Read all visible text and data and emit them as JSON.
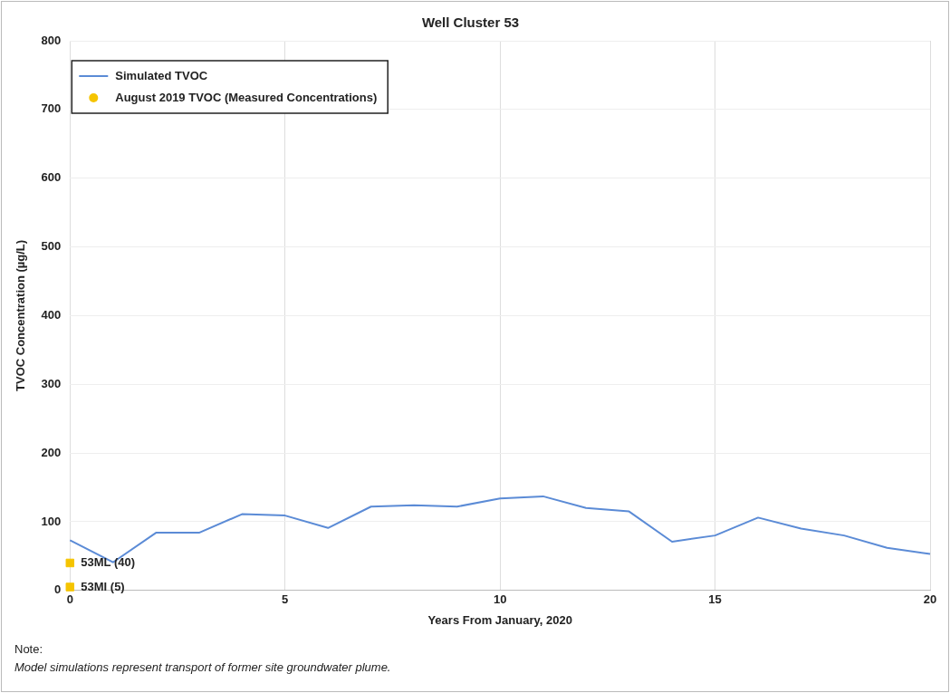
{
  "chart_data": {
    "type": "line",
    "title": "Well Cluster 53",
    "xlabel": "Years From January, 2020",
    "ylabel": "TVOC Concentration (µg/L)",
    "x": [
      0,
      1,
      2,
      3,
      4,
      5,
      6,
      7,
      8,
      9,
      10,
      11,
      12,
      13,
      14,
      15,
      16,
      17,
      18,
      19,
      20
    ],
    "series": [
      {
        "name": "Simulated TVOC",
        "marker": "none",
        "color": "#5b8bd6",
        "values": [
          73,
          41,
          84,
          84,
          111,
          109,
          91,
          122,
          124,
          122,
          134,
          137,
          120,
          115,
          71,
          80,
          106,
          90,
          80,
          62,
          53
        ]
      },
      {
        "name": "August 2019 TVOC (Measured Concentrations)",
        "type": "scatter",
        "marker": "square",
        "color": "#f5c400",
        "x": [
          0,
          0
        ],
        "values": [
          40,
          5
        ]
      }
    ],
    "xlim": [
      0,
      20
    ],
    "xticks": [
      0,
      5,
      10,
      15,
      20
    ],
    "ylim": [
      0,
      800
    ],
    "yticks": [
      0,
      100,
      200,
      300,
      400,
      500,
      600,
      700,
      800
    ],
    "grid": true,
    "legend": "top left",
    "annotations": [
      {
        "text": "53ML (40)",
        "x": 0,
        "y": 40
      },
      {
        "text": "53MI (5)",
        "x": 0,
        "y": 5
      },
      "Note:",
      "Model simulations represent transport of former site groundwater plume."
    ]
  }
}
